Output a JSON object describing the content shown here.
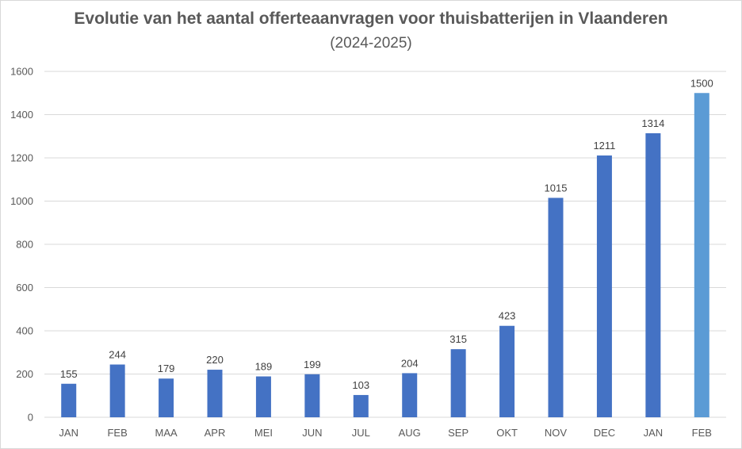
{
  "chart_data": {
    "type": "bar",
    "title": "Evolutie van het aantal offerteaanvragen voor thuisbatterijen in Vlaanderen",
    "subtitle": "(2024-2025)",
    "categories": [
      "JAN",
      "FEB",
      "MAA",
      "APR",
      "MEI",
      "JUN",
      "JUL",
      "AUG",
      "SEP",
      "OKT",
      "NOV",
      "DEC",
      "JAN",
      "FEB"
    ],
    "values": [
      155,
      244,
      179,
      220,
      189,
      199,
      103,
      204,
      315,
      423,
      1015,
      1211,
      1314,
      1500
    ],
    "ylim": [
      0,
      1600
    ],
    "yticks": [
      0,
      200,
      400,
      600,
      800,
      1000,
      1200,
      1400,
      1600
    ],
    "grid": true,
    "data_labels": true,
    "colors": {
      "bar": "#4472C4",
      "bar_highlight": "#5B9BD5",
      "grid": "#d9d9d9",
      "text": "#595959"
    }
  }
}
